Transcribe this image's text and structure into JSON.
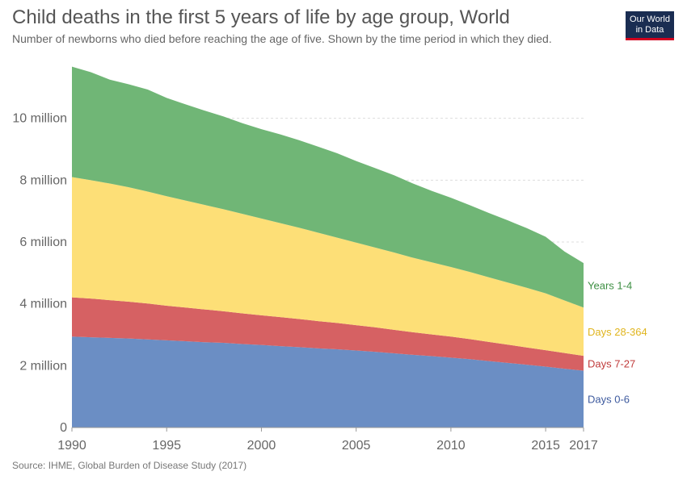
{
  "header": {
    "title": "Child deaths in the first 5 years of life by age group, World",
    "subtitle": "Number of newborns who died before reaching the age of five. Shown by the time period in which they died."
  },
  "logo": {
    "line1": "Our World",
    "line2": "in Data",
    "bg_color": "#1a2d52",
    "accent_color": "#d1001f"
  },
  "footer": {
    "source": "Source: IHME, Global Burden of Disease Study (2017)"
  },
  "chart_data": {
    "type": "area",
    "stacked": true,
    "title": "Child deaths in the first 5 years of life by age group, World",
    "xlabel": "",
    "ylabel": "",
    "xlim": [
      1990,
      2017
    ],
    "ylim": [
      0,
      12000000
    ],
    "grid": true,
    "legend": "right-inline-labels",
    "x": [
      1990,
      1991,
      1992,
      1993,
      1994,
      1995,
      1996,
      1997,
      1998,
      1999,
      2000,
      2001,
      2002,
      2003,
      2004,
      2005,
      2006,
      2007,
      2008,
      2009,
      2010,
      2011,
      2012,
      2013,
      2014,
      2015,
      2016,
      2017
    ],
    "x_ticks": [
      1990,
      1995,
      2000,
      2005,
      2010,
      2015,
      2017
    ],
    "y_ticks": [
      {
        "value": 0,
        "label": "0"
      },
      {
        "value": 2000000,
        "label": "2 million"
      },
      {
        "value": 4000000,
        "label": "4 million"
      },
      {
        "value": 6000000,
        "label": "6 million"
      },
      {
        "value": 8000000,
        "label": "8 million"
      },
      {
        "value": 10000000,
        "label": "10 million"
      }
    ],
    "series": [
      {
        "name": "Days 0-6",
        "color": "#6b8ec4",
        "values": [
          2940000,
          2920000,
          2900000,
          2880000,
          2850000,
          2820000,
          2790000,
          2760000,
          2740000,
          2700000,
          2670000,
          2630000,
          2600000,
          2560000,
          2530000,
          2490000,
          2450000,
          2400000,
          2350000,
          2310000,
          2260000,
          2210000,
          2150000,
          2090000,
          2030000,
          1970000,
          1900000,
          1840000
        ]
      },
      {
        "name": "Days 7-27",
        "color": "#d66163",
        "values": [
          1270000,
          1250000,
          1220000,
          1190000,
          1160000,
          1120000,
          1090000,
          1060000,
          1020000,
          990000,
          960000,
          940000,
          910000,
          880000,
          850000,
          820000,
          790000,
          760000,
          730000,
          700000,
          680000,
          650000,
          620000,
          590000,
          560000,
          530000,
          510000,
          480000
        ]
      },
      {
        "name": "Days 28-364",
        "color": "#fddf77",
        "values": [
          3890000,
          3830000,
          3770000,
          3700000,
          3620000,
          3540000,
          3460000,
          3380000,
          3300000,
          3220000,
          3130000,
          3040000,
          2950000,
          2860000,
          2760000,
          2670000,
          2580000,
          2500000,
          2410000,
          2330000,
          2250000,
          2170000,
          2090000,
          2010000,
          1930000,
          1840000,
          1700000,
          1560000
        ]
      },
      {
        "name": "Years 1-4",
        "color": "#70b676",
        "values": [
          3570000,
          3490000,
          3360000,
          3330000,
          3300000,
          3180000,
          3110000,
          3050000,
          3000000,
          2930000,
          2890000,
          2870000,
          2830000,
          2780000,
          2730000,
          2640000,
          2570000,
          2500000,
          2400000,
          2310000,
          2240000,
          2160000,
          2080000,
          2010000,
          1930000,
          1830000,
          1580000,
          1440000
        ]
      }
    ]
  }
}
